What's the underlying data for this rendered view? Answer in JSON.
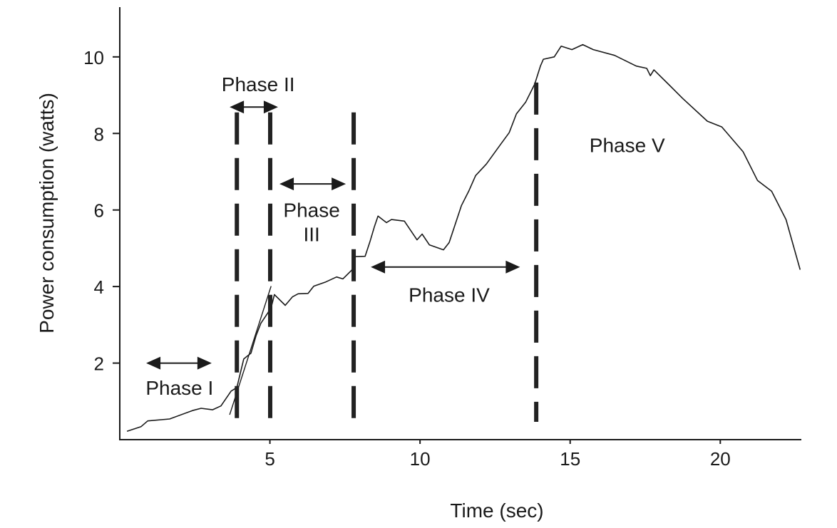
{
  "chart_data": {
    "type": "line",
    "title": "",
    "xlabel": "Time (sec)",
    "ylabel": "Power consumption (watts)",
    "xlim": [
      0,
      22.7
    ],
    "ylim": [
      0,
      11.3
    ],
    "xticks": [
      5,
      10,
      15,
      20
    ],
    "yticks": [
      2,
      4,
      6,
      8,
      10
    ],
    "grid": false,
    "series": [
      {
        "x": [
          0.24,
          0.71,
          0.93,
          1.66,
          2.42,
          2.71,
          3.09,
          3.37,
          3.71,
          3.9,
          4.13,
          4.37,
          4.54,
          4.7,
          4.94,
          5.06,
          5.15,
          5.51,
          5.75,
          5.94,
          6.27,
          6.46,
          6.86,
          7.22,
          7.43,
          7.74,
          7.79,
          8.17,
          8.34,
          8.48,
          8.6,
          8.88,
          9.05,
          9.48,
          9.9,
          10.07,
          10.31,
          10.78,
          10.97,
          11.38,
          11.62,
          11.85,
          12.21,
          12.68,
          12.97,
          13.21,
          13.52,
          13.82,
          14.01,
          14.11,
          14.47,
          14.7,
          15.06,
          15.42,
          15.77,
          16.48,
          17.2,
          17.55,
          17.67,
          17.79,
          18.27,
          18.74,
          19.57,
          20.05,
          20.76,
          21.24,
          21.71,
          22.19,
          22.66
        ],
        "y": [
          0.22,
          0.34,
          0.49,
          0.54,
          0.76,
          0.82,
          0.78,
          0.88,
          1.27,
          1.36,
          2.11,
          2.26,
          2.72,
          3.04,
          3.32,
          3.51,
          3.79,
          3.51,
          3.73,
          3.81,
          3.82,
          4.01,
          4.12,
          4.25,
          4.2,
          4.44,
          4.78,
          4.79,
          5.19,
          5.56,
          5.84,
          5.67,
          5.75,
          5.71,
          5.22,
          5.37,
          5.09,
          4.96,
          5.15,
          6.12,
          6.49,
          6.9,
          7.2,
          7.71,
          8.02,
          8.51,
          8.82,
          9.29,
          9.76,
          9.94,
          10.0,
          10.28,
          10.19,
          10.32,
          10.19,
          10.04,
          9.76,
          9.7,
          9.51,
          9.66,
          9.29,
          8.92,
          8.32,
          8.17,
          7.52,
          6.77,
          6.49,
          5.75,
          4.44
        ]
      }
    ],
    "tangent_line": {
      "x": [
        3.66,
        5.04
      ],
      "y": [
        0.65,
        4.01
      ]
    },
    "phase_boundaries": [
      {
        "x": 3.9,
        "y_top": 8.55
      },
      {
        "x": 5.01,
        "y_top": 8.55
      },
      {
        "x": 7.79,
        "y_top": 8.55
      },
      {
        "x": 13.87,
        "y_top": 9.33
      }
    ],
    "annotations": [
      {
        "label": "Phase I",
        "arrow_x": [
          0.88,
          3.06
        ],
        "arrow_y": 2.0,
        "label_x": 1.99,
        "label_y": 1.36
      },
      {
        "label": "Phase II",
        "arrow_x": [
          3.66,
          5.27
        ],
        "arrow_y": 8.69,
        "label_x": 4.61,
        "label_y": 9.29
      },
      {
        "label": "Phase\nIII",
        "arrow_x": [
          5.32,
          7.53
        ],
        "arrow_y": 6.68,
        "label_x": 6.39,
        "label_y": 6.0
      },
      {
        "label": "Phase IV",
        "arrow_x": [
          8.36,
          13.33
        ],
        "arrow_y": 4.51,
        "label_x": 10.97,
        "label_y": 3.79
      },
      {
        "label": "Phase V",
        "arrow_x": null,
        "arrow_y": null,
        "label_x": 16.9,
        "label_y": 7.7
      }
    ]
  }
}
